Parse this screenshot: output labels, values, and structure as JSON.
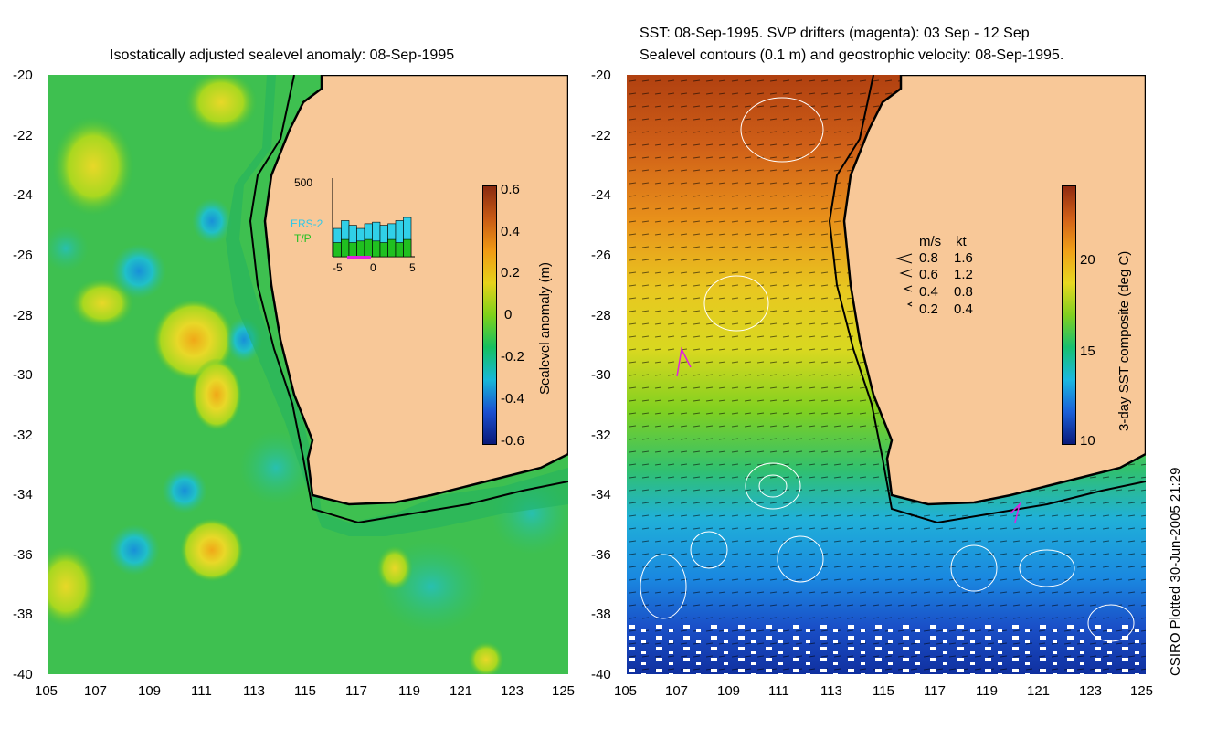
{
  "left_panel": {
    "title": "Isostatically adjusted sealevel anomaly: 08-Sep-1995",
    "colorbar": {
      "label": "Sealevel anomaly (m)",
      "ticks": [
        "0.6",
        "0.4",
        "0.2",
        "0",
        "-0.2",
        "-0.4",
        "-0.6"
      ],
      "colors": [
        "#0a1a78",
        "#1a4fd0",
        "#17b8d8",
        "#16c060",
        "#7ed21a",
        "#e6d21a",
        "#f09a14",
        "#c85a14",
        "#8a2a10"
      ]
    },
    "inset": {
      "ymax_label": "500",
      "legend": [
        "ERS-2",
        "T/P"
      ],
      "x_ticks": [
        "-5",
        "0",
        "5"
      ],
      "bars_ers2": [
        180,
        230,
        200,
        180,
        210,
        220,
        200,
        210,
        230,
        250
      ],
      "bars_tp": [
        90,
        110,
        90,
        100,
        110,
        100,
        90,
        110,
        90,
        110
      ]
    }
  },
  "right_panel": {
    "title_line1": "SST: 08-Sep-1995. SVP drifters (magenta): 03 Sep - 12 Sep",
    "title_line2": "Sealevel contours (0.1 m) and geostrophic velocity: 08-Sep-1995.",
    "colorbar": {
      "label": "3-day SST composite (deg C)",
      "ticks": [
        "20",
        "15",
        "10"
      ],
      "colors": [
        "#0a1a7a",
        "#1a5fd8",
        "#1ab8e0",
        "#18c070",
        "#80d020",
        "#e8d820",
        "#f0a018",
        "#d26018",
        "#902a10"
      ]
    },
    "velocity_legend": {
      "header_ms": "m/s",
      "header_kt": "kt",
      "rows": [
        {
          "ms": "0.8",
          "kt": "1.6"
        },
        {
          "ms": "0.6",
          "kt": "1.2"
        },
        {
          "ms": "0.4",
          "kt": "0.8"
        },
        {
          "ms": "0.2",
          "kt": "0.4"
        }
      ]
    }
  },
  "axes": {
    "x_ticks": [
      "105",
      "107",
      "109",
      "111",
      "113",
      "115",
      "117",
      "119",
      "121",
      "123",
      "125"
    ],
    "y_ticks": [
      "-20",
      "-22",
      "-24",
      "-26",
      "-28",
      "-30",
      "-32",
      "-34",
      "-36",
      "-38",
      "-40"
    ],
    "lon_range": [
      105,
      125
    ],
    "lat_range": [
      -40,
      -20
    ]
  },
  "credit": "CSIRO Plotted 30-Jun-2005 21:29",
  "colors": {
    "land": "#f8c898",
    "coast": "#000000"
  }
}
